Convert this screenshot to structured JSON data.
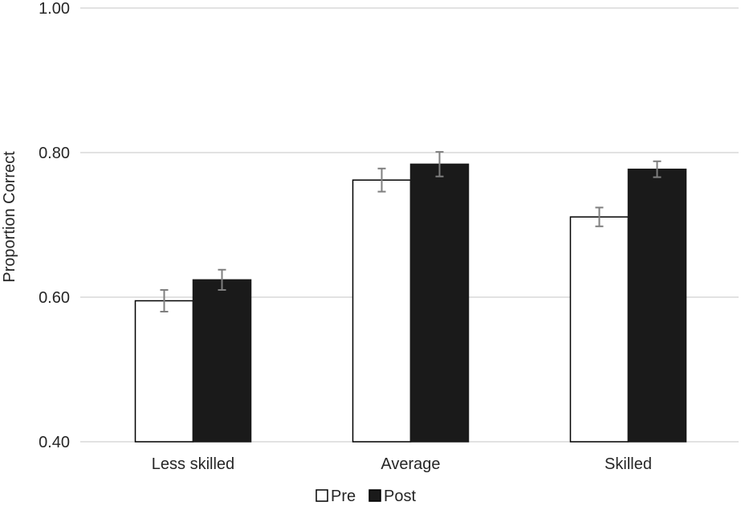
{
  "chart_data": {
    "type": "bar",
    "title": "",
    "xlabel": "",
    "ylabel": "Proportion Correct",
    "ylim": [
      0.4,
      1.0
    ],
    "yticks": [
      "0.40",
      "0.60",
      "0.80",
      "1.00"
    ],
    "categories": [
      "Less skilled",
      "Average",
      "Skilled"
    ],
    "grid": true,
    "legend_position": "bottom",
    "series": [
      {
        "name": "Pre",
        "values": [
          0.595,
          0.762,
          0.711
        ],
        "errors": [
          0.015,
          0.016,
          0.013
        ],
        "fill": "#ffffff",
        "stroke": "#000000"
      },
      {
        "name": "Post",
        "values": [
          0.624,
          0.784,
          0.777
        ],
        "errors": [
          0.014,
          0.017,
          0.011
        ],
        "fill": "#1a1a1a",
        "stroke": "#1a1a1a"
      }
    ],
    "colors": {
      "gridline": "#d9d9d9",
      "errorbar": "#7f7f7f",
      "text": "#262626"
    }
  }
}
